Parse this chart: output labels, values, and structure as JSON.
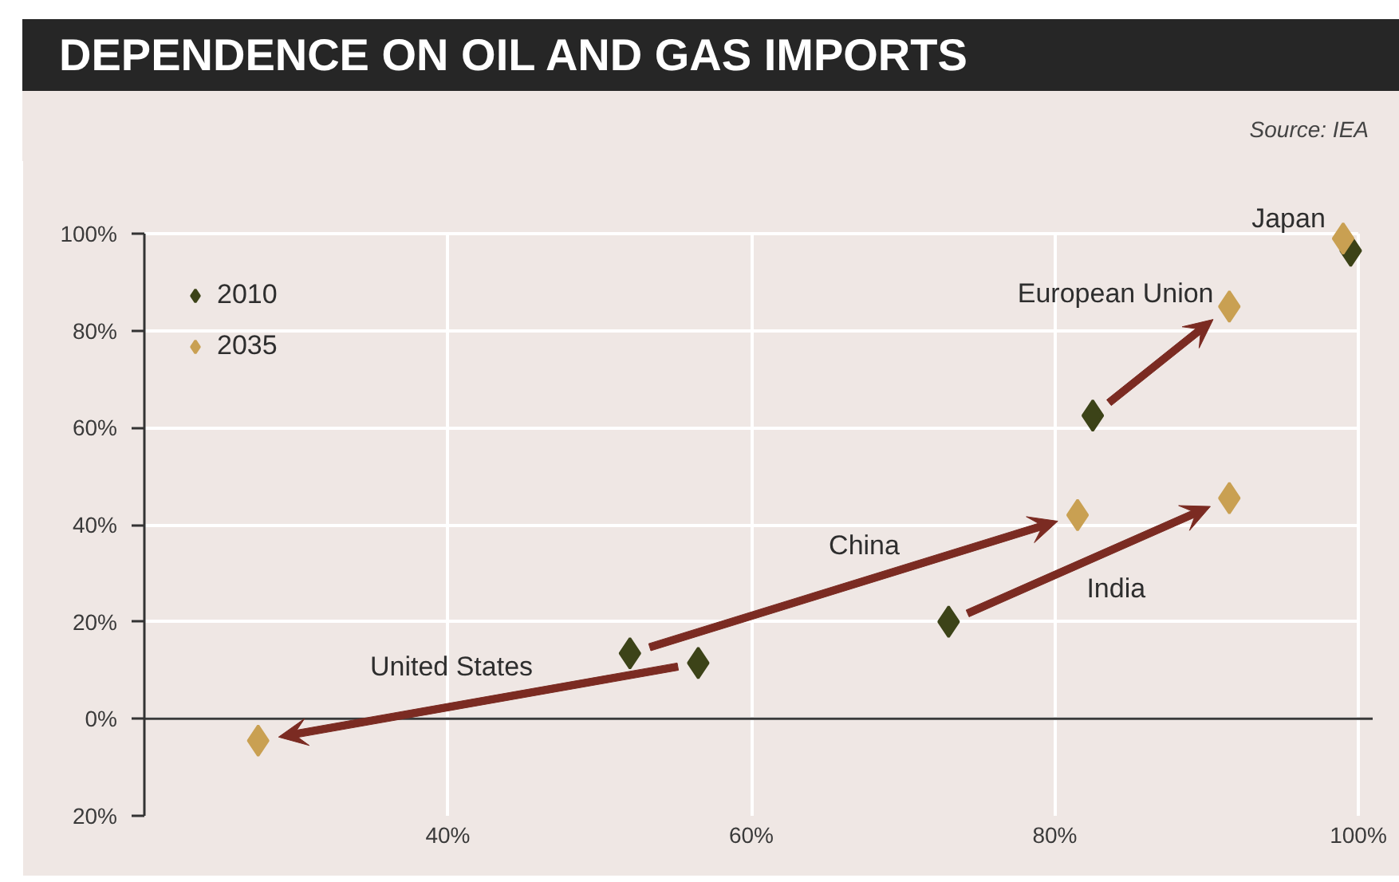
{
  "chart_data": {
    "type": "scatter",
    "title": "DEPENDENCE ON OIL AND GAS IMPORTS",
    "annotations": [
      "Source: IEA",
      "United States",
      "China",
      "India",
      "European Union",
      "Japan"
    ],
    "series": [
      {
        "name": "2010",
        "color": "#3c4318",
        "x": [
          56.5,
          52,
          73,
          82.5,
          99.5
        ],
        "values": [
          11.5,
          13.5,
          20,
          62.5,
          96.5
        ]
      },
      {
        "name": "2035",
        "color": "#c9a052",
        "x": [
          27.5,
          81.5,
          91.5,
          91.5,
          99
        ],
        "values": [
          -4.5,
          42,
          45.5,
          85,
          99
        ]
      }
    ],
    "xlim": [
      20,
      100
    ],
    "ylim": [
      -20,
      100
    ],
    "xticks": [
      {
        "value": 40,
        "label": "40%"
      },
      {
        "value": 60,
        "label": "60%"
      },
      {
        "value": 80,
        "label": "80%"
      },
      {
        "value": 100,
        "label": "100%"
      }
    ],
    "yticks": [
      {
        "value": -20,
        "label": "20%"
      },
      {
        "value": 0,
        "label": "0%"
      },
      {
        "value": 20,
        "label": "20%"
      },
      {
        "value": 40,
        "label": "40%"
      },
      {
        "value": 60,
        "label": "60%"
      },
      {
        "value": 80,
        "label": "80%"
      },
      {
        "value": 100,
        "label": "100%"
      }
    ],
    "ref_lines": [
      {
        "axis": "y",
        "value": 0,
        "color": "#3a3a3a"
      }
    ],
    "grid": true,
    "legend": "top left",
    "marker": "diamond"
  }
}
